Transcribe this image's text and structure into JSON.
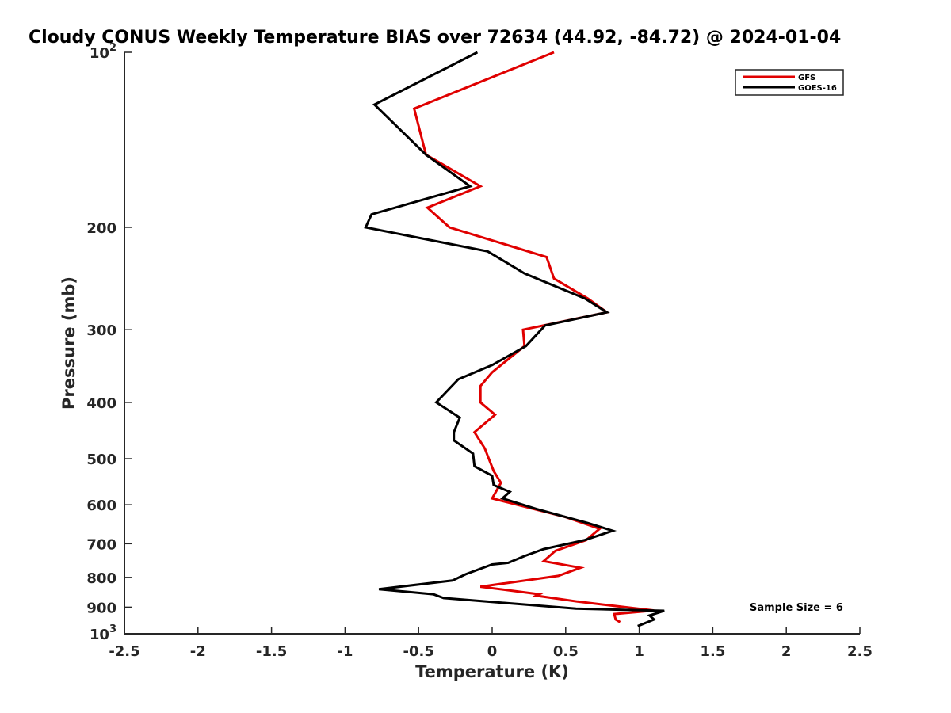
{
  "chart_data": {
    "type": "line",
    "title": "Cloudy CONUS Weekly Temperature BIAS over 72634 (44.92, -84.72) @ 2024-01-04",
    "xlabel": "Temperature (K)",
    "ylabel": "Pressure (mb)",
    "xlim": [
      -2.5,
      2.5
    ],
    "ylim": [
      100,
      1000
    ],
    "yscale": "log",
    "y_reversed": true,
    "grid": false,
    "legend_position": "top-right",
    "x_ticks": [
      "-2.5",
      "-2",
      "-1.5",
      "-1",
      "-0.5",
      "0",
      "0.5",
      "1",
      "1.5",
      "2",
      "2.5"
    ],
    "y_ticks": [
      {
        "value": 100,
        "label": "10",
        "sup": "2"
      },
      {
        "value": 200,
        "label": "200",
        "sup": ""
      },
      {
        "value": 300,
        "label": "300",
        "sup": ""
      },
      {
        "value": 400,
        "label": "400",
        "sup": ""
      },
      {
        "value": 500,
        "label": "500",
        "sup": ""
      },
      {
        "value": 600,
        "label": "600",
        "sup": ""
      },
      {
        "value": 700,
        "label": "700",
        "sup": ""
      },
      {
        "value": 800,
        "label": "800",
        "sup": ""
      },
      {
        "value": 900,
        "label": "900",
        "sup": ""
      },
      {
        "value": 1000,
        "label": "10",
        "sup": "3"
      }
    ],
    "annotation": "Sample Size = 6",
    "series": [
      {
        "name": "GFS",
        "color": "#e00000",
        "points": [
          [
            0.42,
            100
          ],
          [
            -0.53,
            125
          ],
          [
            -0.45,
            150
          ],
          [
            -0.08,
            170
          ],
          [
            -0.44,
            185
          ],
          [
            -0.29,
            200
          ],
          [
            0.37,
            225
          ],
          [
            0.42,
            245
          ],
          [
            0.65,
            265
          ],
          [
            0.78,
            280
          ],
          [
            0.21,
            300
          ],
          [
            0.22,
            320
          ],
          [
            0.0,
            355
          ],
          [
            -0.08,
            375
          ],
          [
            -0.08,
            400
          ],
          [
            0.02,
            420
          ],
          [
            -0.12,
            450
          ],
          [
            -0.05,
            480
          ],
          [
            0.01,
            525
          ],
          [
            0.06,
            550
          ],
          [
            0.0,
            585
          ],
          [
            0.5,
            630
          ],
          [
            0.73,
            660
          ],
          [
            0.64,
            690
          ],
          [
            0.43,
            720
          ],
          [
            0.35,
            750
          ],
          [
            0.6,
            770
          ],
          [
            0.45,
            795
          ],
          [
            -0.08,
            830
          ],
          [
            0.32,
            855
          ],
          [
            0.3,
            860
          ],
          [
            0.58,
            880
          ],
          [
            1.1,
            912
          ],
          [
            0.83,
            925
          ],
          [
            0.84,
            945
          ],
          [
            0.87,
            955
          ]
        ]
      },
      {
        "name": "GOES-16",
        "color": "#000000",
        "points": [
          [
            -0.1,
            100
          ],
          [
            -0.8,
            123
          ],
          [
            -0.45,
            150
          ],
          [
            -0.15,
            170
          ],
          [
            -0.82,
            190
          ],
          [
            -0.86,
            200
          ],
          [
            -0.03,
            220
          ],
          [
            0.22,
            240
          ],
          [
            0.63,
            265
          ],
          [
            0.78,
            280
          ],
          [
            0.36,
            295
          ],
          [
            0.23,
            320
          ],
          [
            0.0,
            345
          ],
          [
            -0.23,
            365
          ],
          [
            -0.38,
            400
          ],
          [
            -0.22,
            425
          ],
          [
            -0.26,
            450
          ],
          [
            -0.26,
            465
          ],
          [
            -0.13,
            490
          ],
          [
            -0.12,
            515
          ],
          [
            0.0,
            535
          ],
          [
            0.01,
            555
          ],
          [
            0.12,
            570
          ],
          [
            0.07,
            585
          ],
          [
            0.3,
            610
          ],
          [
            0.65,
            645
          ],
          [
            0.82,
            665
          ],
          [
            0.63,
            690
          ],
          [
            0.35,
            715
          ],
          [
            0.22,
            735
          ],
          [
            0.11,
            755
          ],
          [
            0.0,
            760
          ],
          [
            -0.18,
            790
          ],
          [
            -0.27,
            810
          ],
          [
            -0.77,
            838
          ],
          [
            -0.4,
            855
          ],
          [
            -0.33,
            868
          ],
          [
            0.57,
            905
          ],
          [
            1.17,
            913
          ],
          [
            1.07,
            930
          ],
          [
            1.1,
            945
          ],
          [
            0.99,
            970
          ]
        ]
      }
    ]
  }
}
